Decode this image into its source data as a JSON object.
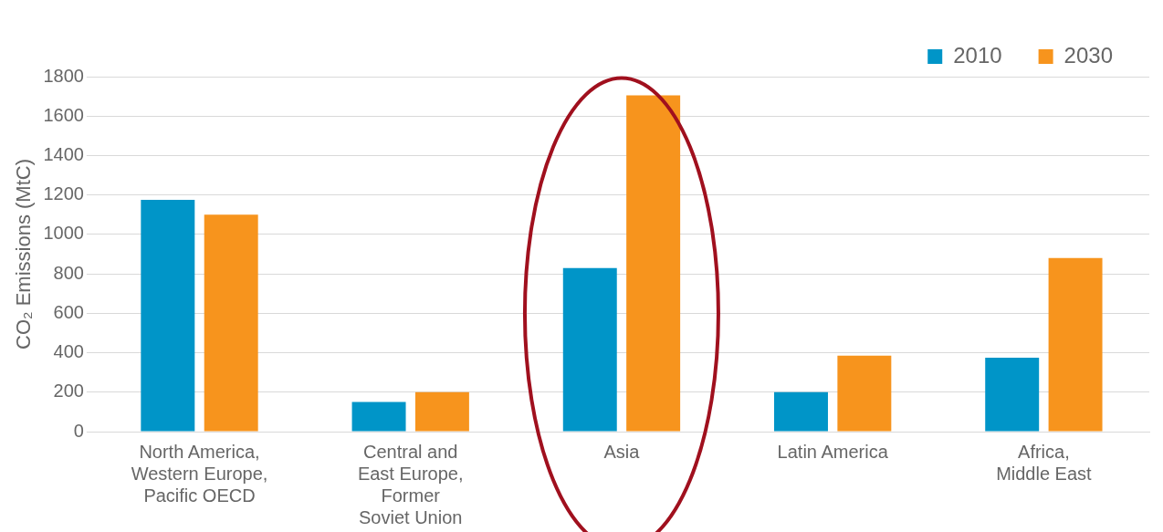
{
  "chart_data": {
    "type": "bar",
    "ylabel": "CO₂ Emissions (MtC)",
    "categories": [
      "North America,\nWestern Europe,\nPacific OECD",
      "Central and\nEast Europe,\nFormer\nSoviet Union",
      "Asia",
      "Latin America",
      "Africa,\nMiddle East"
    ],
    "series": [
      {
        "name": "2010",
        "color": "#0095c8",
        "values": [
          1175,
          150,
          830,
          200,
          375
        ]
      },
      {
        "name": "2030",
        "color": "#f7941d",
        "values": [
          1100,
          200,
          1705,
          385,
          880
        ]
      }
    ],
    "ylim": [
      0,
      1800
    ],
    "yticks": [
      0,
      200,
      400,
      600,
      800,
      1000,
      1200,
      1400,
      1600,
      1800
    ],
    "grid": "y",
    "legend": "top right"
  }
}
